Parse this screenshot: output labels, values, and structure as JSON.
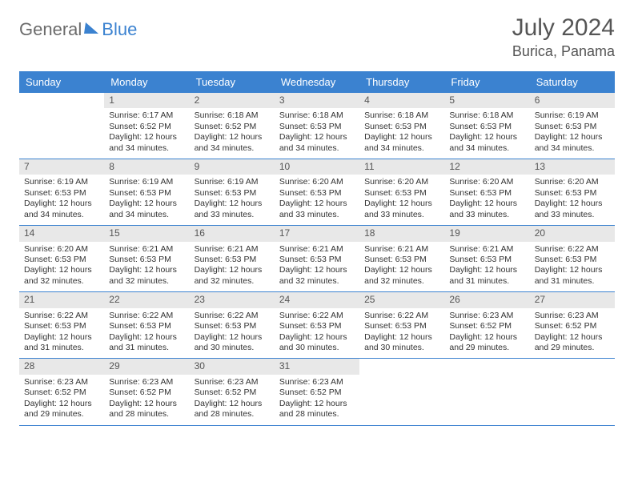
{
  "logo": {
    "text1": "General",
    "text2": "Blue"
  },
  "title": "July 2024",
  "location": "Burica, Panama",
  "colors": {
    "header_bg": "#3b82d0",
    "header_text": "#ffffff",
    "daynum_bg": "#e8e8e8",
    "text": "#333333",
    "rule": "#3b82d0",
    "logo_gray": "#6b6b6b",
    "logo_blue": "#3b82d0"
  },
  "day_labels": [
    "Sunday",
    "Monday",
    "Tuesday",
    "Wednesday",
    "Thursday",
    "Friday",
    "Saturday"
  ],
  "weeks": [
    [
      {
        "n": "",
        "sr": "",
        "ss": "",
        "dl": ""
      },
      {
        "n": "1",
        "sr": "Sunrise: 6:17 AM",
        "ss": "Sunset: 6:52 PM",
        "dl": "Daylight: 12 hours and 34 minutes."
      },
      {
        "n": "2",
        "sr": "Sunrise: 6:18 AM",
        "ss": "Sunset: 6:52 PM",
        "dl": "Daylight: 12 hours and 34 minutes."
      },
      {
        "n": "3",
        "sr": "Sunrise: 6:18 AM",
        "ss": "Sunset: 6:53 PM",
        "dl": "Daylight: 12 hours and 34 minutes."
      },
      {
        "n": "4",
        "sr": "Sunrise: 6:18 AM",
        "ss": "Sunset: 6:53 PM",
        "dl": "Daylight: 12 hours and 34 minutes."
      },
      {
        "n": "5",
        "sr": "Sunrise: 6:18 AM",
        "ss": "Sunset: 6:53 PM",
        "dl": "Daylight: 12 hours and 34 minutes."
      },
      {
        "n": "6",
        "sr": "Sunrise: 6:19 AM",
        "ss": "Sunset: 6:53 PM",
        "dl": "Daylight: 12 hours and 34 minutes."
      }
    ],
    [
      {
        "n": "7",
        "sr": "Sunrise: 6:19 AM",
        "ss": "Sunset: 6:53 PM",
        "dl": "Daylight: 12 hours and 34 minutes."
      },
      {
        "n": "8",
        "sr": "Sunrise: 6:19 AM",
        "ss": "Sunset: 6:53 PM",
        "dl": "Daylight: 12 hours and 34 minutes."
      },
      {
        "n": "9",
        "sr": "Sunrise: 6:19 AM",
        "ss": "Sunset: 6:53 PM",
        "dl": "Daylight: 12 hours and 33 minutes."
      },
      {
        "n": "10",
        "sr": "Sunrise: 6:20 AM",
        "ss": "Sunset: 6:53 PM",
        "dl": "Daylight: 12 hours and 33 minutes."
      },
      {
        "n": "11",
        "sr": "Sunrise: 6:20 AM",
        "ss": "Sunset: 6:53 PM",
        "dl": "Daylight: 12 hours and 33 minutes."
      },
      {
        "n": "12",
        "sr": "Sunrise: 6:20 AM",
        "ss": "Sunset: 6:53 PM",
        "dl": "Daylight: 12 hours and 33 minutes."
      },
      {
        "n": "13",
        "sr": "Sunrise: 6:20 AM",
        "ss": "Sunset: 6:53 PM",
        "dl": "Daylight: 12 hours and 33 minutes."
      }
    ],
    [
      {
        "n": "14",
        "sr": "Sunrise: 6:20 AM",
        "ss": "Sunset: 6:53 PM",
        "dl": "Daylight: 12 hours and 32 minutes."
      },
      {
        "n": "15",
        "sr": "Sunrise: 6:21 AM",
        "ss": "Sunset: 6:53 PM",
        "dl": "Daylight: 12 hours and 32 minutes."
      },
      {
        "n": "16",
        "sr": "Sunrise: 6:21 AM",
        "ss": "Sunset: 6:53 PM",
        "dl": "Daylight: 12 hours and 32 minutes."
      },
      {
        "n": "17",
        "sr": "Sunrise: 6:21 AM",
        "ss": "Sunset: 6:53 PM",
        "dl": "Daylight: 12 hours and 32 minutes."
      },
      {
        "n": "18",
        "sr": "Sunrise: 6:21 AM",
        "ss": "Sunset: 6:53 PM",
        "dl": "Daylight: 12 hours and 32 minutes."
      },
      {
        "n": "19",
        "sr": "Sunrise: 6:21 AM",
        "ss": "Sunset: 6:53 PM",
        "dl": "Daylight: 12 hours and 31 minutes."
      },
      {
        "n": "20",
        "sr": "Sunrise: 6:22 AM",
        "ss": "Sunset: 6:53 PM",
        "dl": "Daylight: 12 hours and 31 minutes."
      }
    ],
    [
      {
        "n": "21",
        "sr": "Sunrise: 6:22 AM",
        "ss": "Sunset: 6:53 PM",
        "dl": "Daylight: 12 hours and 31 minutes."
      },
      {
        "n": "22",
        "sr": "Sunrise: 6:22 AM",
        "ss": "Sunset: 6:53 PM",
        "dl": "Daylight: 12 hours and 31 minutes."
      },
      {
        "n": "23",
        "sr": "Sunrise: 6:22 AM",
        "ss": "Sunset: 6:53 PM",
        "dl": "Daylight: 12 hours and 30 minutes."
      },
      {
        "n": "24",
        "sr": "Sunrise: 6:22 AM",
        "ss": "Sunset: 6:53 PM",
        "dl": "Daylight: 12 hours and 30 minutes."
      },
      {
        "n": "25",
        "sr": "Sunrise: 6:22 AM",
        "ss": "Sunset: 6:53 PM",
        "dl": "Daylight: 12 hours and 30 minutes."
      },
      {
        "n": "26",
        "sr": "Sunrise: 6:23 AM",
        "ss": "Sunset: 6:52 PM",
        "dl": "Daylight: 12 hours and 29 minutes."
      },
      {
        "n": "27",
        "sr": "Sunrise: 6:23 AM",
        "ss": "Sunset: 6:52 PM",
        "dl": "Daylight: 12 hours and 29 minutes."
      }
    ],
    [
      {
        "n": "28",
        "sr": "Sunrise: 6:23 AM",
        "ss": "Sunset: 6:52 PM",
        "dl": "Daylight: 12 hours and 29 minutes."
      },
      {
        "n": "29",
        "sr": "Sunrise: 6:23 AM",
        "ss": "Sunset: 6:52 PM",
        "dl": "Daylight: 12 hours and 28 minutes."
      },
      {
        "n": "30",
        "sr": "Sunrise: 6:23 AM",
        "ss": "Sunset: 6:52 PM",
        "dl": "Daylight: 12 hours and 28 minutes."
      },
      {
        "n": "31",
        "sr": "Sunrise: 6:23 AM",
        "ss": "Sunset: 6:52 PM",
        "dl": "Daylight: 12 hours and 28 minutes."
      },
      {
        "n": "",
        "sr": "",
        "ss": "",
        "dl": ""
      },
      {
        "n": "",
        "sr": "",
        "ss": "",
        "dl": ""
      },
      {
        "n": "",
        "sr": "",
        "ss": "",
        "dl": ""
      }
    ]
  ]
}
